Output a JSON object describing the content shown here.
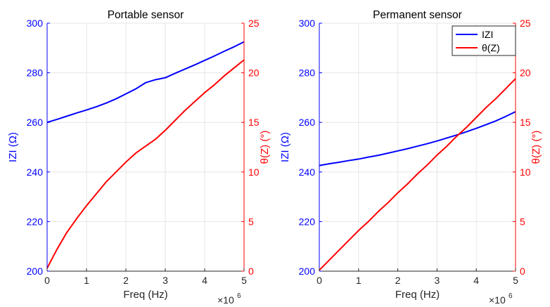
{
  "chart_data": [
    {
      "type": "line",
      "title": "Portable sensor",
      "xlabel": "Freq (Hz)",
      "x_exponent_label": "×10",
      "x_exponent_power": "6",
      "ylabel_left": "IZI (Ω)",
      "ylabel_right": "θ(Z) (°)",
      "xlim": [
        0,
        5000000
      ],
      "ylim_left": [
        200,
        300
      ],
      "ylim_right": [
        0,
        25
      ],
      "x_ticks": [
        0,
        1000000,
        2000000,
        3000000,
        4000000,
        5000000
      ],
      "x_tick_labels": [
        "0",
        "1",
        "2",
        "3",
        "4",
        "5"
      ],
      "y_ticks_left": [
        200,
        220,
        240,
        260,
        280,
        300
      ],
      "y_ticks_right": [
        0,
        5,
        10,
        15,
        20,
        25
      ],
      "grid": true,
      "legend": false,
      "series": [
        {
          "name": "IZI",
          "axis": "left",
          "color": "#0000ff",
          "x": [
            0,
            250000,
            500000,
            750000,
            1000000,
            1250000,
            1500000,
            1750000,
            2000000,
            2250000,
            2500000,
            2750000,
            3000000,
            3250000,
            3500000,
            3750000,
            4000000,
            4250000,
            4500000,
            4750000,
            5000000
          ],
          "y": [
            260.0,
            261.2,
            262.5,
            263.8,
            265.0,
            266.3,
            267.8,
            269.5,
            271.5,
            273.5,
            276.0,
            277.2,
            278.0,
            279.8,
            281.5,
            283.2,
            285.0,
            286.8,
            288.7,
            290.5,
            292.5
          ]
        },
        {
          "name": "θ(Z)",
          "axis": "right",
          "color": "#ff0000",
          "x": [
            0,
            250000,
            500000,
            750000,
            1000000,
            1250000,
            1500000,
            1750000,
            2000000,
            2250000,
            2500000,
            2750000,
            3000000,
            3250000,
            3500000,
            3750000,
            4000000,
            4250000,
            4500000,
            4750000,
            5000000
          ],
          "y": [
            0.3,
            2.2,
            3.9,
            5.3,
            6.6,
            7.8,
            9.0,
            10.0,
            11.0,
            11.9,
            12.6,
            13.3,
            14.2,
            15.2,
            16.2,
            17.1,
            18.0,
            18.8,
            19.7,
            20.5,
            21.3
          ]
        }
      ]
    },
    {
      "type": "line",
      "title": "Permanent sensor",
      "xlabel": "Freq (Hz)",
      "x_exponent_label": "×10",
      "x_exponent_power": "6",
      "ylabel_left": "IZI (Ω)",
      "ylabel_right": "θ(Z) (°)",
      "xlim": [
        0,
        5000000
      ],
      "ylim_left": [
        200,
        300
      ],
      "ylim_right": [
        0,
        25
      ],
      "x_ticks": [
        0,
        1000000,
        2000000,
        3000000,
        4000000,
        5000000
      ],
      "x_tick_labels": [
        "0",
        "1",
        "2",
        "3",
        "4",
        "5"
      ],
      "y_ticks_left": [
        200,
        220,
        240,
        260,
        280,
        300
      ],
      "y_ticks_right": [
        0,
        5,
        10,
        15,
        20,
        25
      ],
      "grid": true,
      "legend": true,
      "legend_position": "top-right",
      "series": [
        {
          "name": "IZI",
          "axis": "left",
          "color": "#0000ff",
          "x": [
            0,
            250000,
            500000,
            750000,
            1000000,
            1250000,
            1500000,
            1750000,
            2000000,
            2250000,
            2500000,
            2750000,
            3000000,
            3250000,
            3500000,
            3750000,
            4000000,
            4250000,
            4500000,
            4750000,
            5000000
          ],
          "y": [
            242.6,
            243.3,
            243.9,
            244.6,
            245.2,
            246.0,
            246.7,
            247.6,
            248.5,
            249.4,
            250.4,
            251.4,
            252.5,
            253.7,
            254.9,
            256.2,
            257.6,
            259.1,
            260.6,
            262.4,
            264.3
          ]
        },
        {
          "name": "θ(Z)",
          "axis": "right",
          "color": "#ff0000",
          "x": [
            0,
            250000,
            500000,
            750000,
            1000000,
            1250000,
            1500000,
            1750000,
            2000000,
            2250000,
            2500000,
            2750000,
            3000000,
            3250000,
            3500000,
            3750000,
            4000000,
            4250000,
            4500000,
            4750000,
            5000000
          ],
          "y": [
            0.1,
            1.1,
            2.1,
            3.1,
            4.1,
            5.0,
            6.0,
            6.9,
            7.9,
            8.8,
            9.8,
            10.7,
            11.7,
            12.6,
            13.6,
            14.5,
            15.5,
            16.5,
            17.4,
            18.4,
            19.4
          ]
        }
      ]
    }
  ]
}
